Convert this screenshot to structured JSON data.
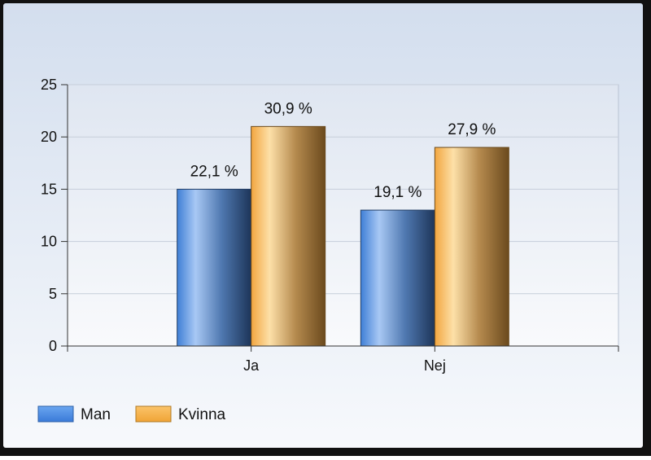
{
  "chart_data": {
    "type": "bar",
    "categories": [
      "Ja",
      "Nej"
    ],
    "series": [
      {
        "name": "Man",
        "values": [
          15,
          13
        ],
        "labels": [
          "22,1 %",
          "19,1 %"
        ],
        "color": "#4a90e2"
      },
      {
        "name": "Kvinna",
        "values": [
          21,
          19
        ],
        "labels": [
          "30,9 %",
          "27,9 %"
        ],
        "color": "#f5b04a"
      }
    ],
    "title": "",
    "xlabel": "",
    "ylabel": "",
    "ylim": [
      0,
      25
    ],
    "yticks": [
      "0",
      "5",
      "10",
      "15",
      "20",
      "25"
    ],
    "grid": true,
    "legend": "bottom-left"
  }
}
